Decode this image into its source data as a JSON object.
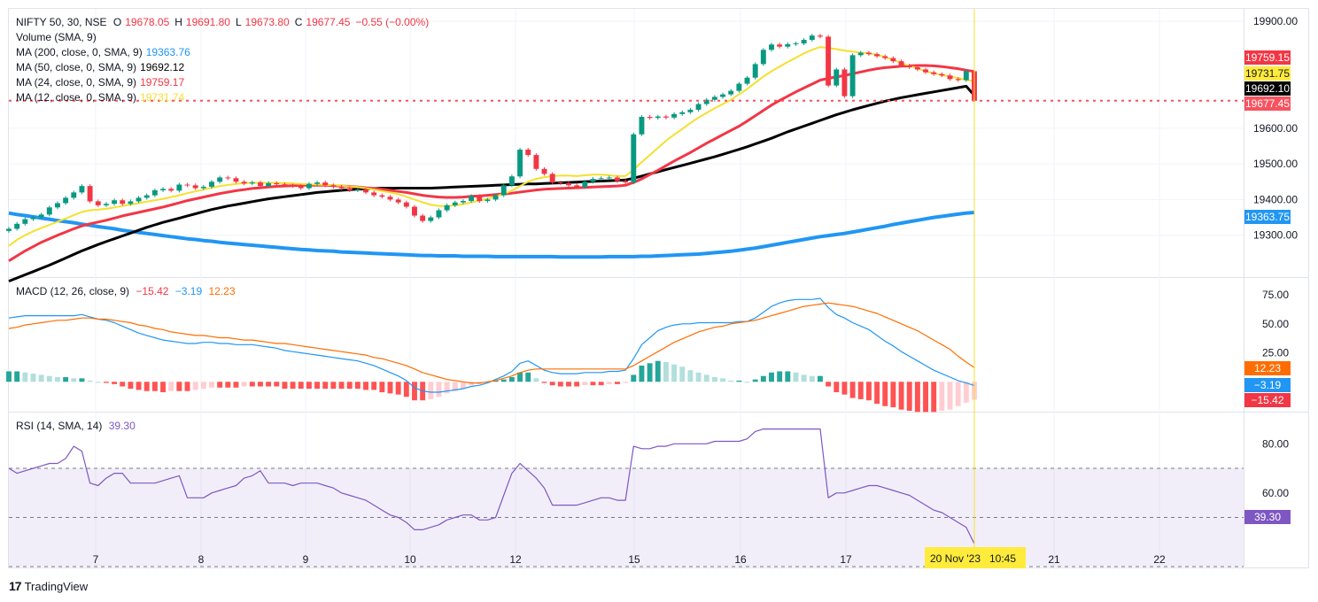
{
  "header": {
    "symbol": "NIFTY 50, 30, NSE",
    "o_label": "O",
    "o": "19678.05",
    "h_label": "H",
    "h": "19691.80",
    "l_label": "L",
    "l": "19673.80",
    "c_label": "C",
    "c": "19677.45",
    "change": "−0.55 (−0.00%)"
  },
  "legend": [
    {
      "label": "Volume (SMA, 9)",
      "value": "",
      "color": "#131722"
    },
    {
      "label": "MA (200, close, 0, SMA, 9)",
      "value": "19363.76",
      "color": "#2196f3"
    },
    {
      "label": "MA (50, close, 0, SMA, 9)",
      "value": "19692.12",
      "color": "#000000"
    },
    {
      "label": "MA (24, close, 0, SMA, 9)",
      "value": "19759.17",
      "color": "#f23645"
    },
    {
      "label": "MA (12, close, 0, SMA, 9)",
      "value": "19731.74",
      "color": "#f5e02e"
    }
  ],
  "macd_legend": {
    "label": "MACD (12, 26, close, 9)",
    "hist": "−15.42",
    "macd": "−3.19",
    "signal": "12.23"
  },
  "rsi_legend": {
    "label": "RSI (14, SMA, 14)",
    "value": "39.30"
  },
  "price_badges": [
    {
      "text": "19759.15",
      "bg": "#f23645",
      "fg": "#ffffff",
      "v": 19759.15
    },
    {
      "text": "19731.75",
      "bg": "#ffeb3b",
      "fg": "#131722",
      "v": 19731.75
    },
    {
      "text": "19692.10",
      "bg": "#000000",
      "fg": "#ffffff",
      "v": 19692.1
    },
    {
      "text": "19677.45",
      "bg": "#f7525f",
      "fg": "#ffffff",
      "v": 19677.45
    },
    {
      "text": "19363.75",
      "bg": "#2196f3",
      "fg": "#ffffff",
      "v": 19363.75
    }
  ],
  "macd_badges": [
    {
      "text": "12.23",
      "bg": "#ff6d00",
      "v": 12.23
    },
    {
      "text": "−3.19",
      "bg": "#2196f3",
      "v": -3.19
    },
    {
      "text": "−15.42",
      "bg": "#f23645",
      "v": -15.42
    }
  ],
  "rsi_badge": {
    "text": "39.30",
    "bg": "#7e57c2",
    "v": 39.3
  },
  "crosshair_label": {
    "date": "20 Nov '23",
    "time": "10:45"
  },
  "branding": {
    "mark": "17",
    "name": "TradingView"
  },
  "colors": {
    "up": "#089981",
    "down": "#f23645",
    "ma200": "#2196f3",
    "ma50": "#000000",
    "ma24": "#f23645",
    "ma12": "#f5e02e",
    "rsi": "#7e57c2",
    "macd": "#2196f3",
    "signal": "#ff6d00"
  },
  "chart_data": [
    {
      "type": "candlestick",
      "title": "NIFTY 50, 30, NSE",
      "x_ticks": [
        "7",
        "8",
        "9",
        "10",
        "12",
        "15",
        "16",
        "17",
        "21",
        "22"
      ],
      "y_ticks": [
        "19900.00",
        "19600.00",
        "19500.00",
        "19400.00",
        "19300.00"
      ],
      "ylim": [
        19185,
        19935
      ],
      "closes": [
        19318,
        19332,
        19345,
        19350,
        19358,
        19378,
        19390,
        19405,
        19420,
        19438,
        19395,
        19384,
        19388,
        19398,
        19388,
        19395,
        19405,
        19412,
        19426,
        19430,
        19425,
        19442,
        19440,
        19432,
        19436,
        19450,
        19462,
        19460,
        19450,
        19445,
        19448,
        19438,
        19446,
        19443,
        19440,
        19438,
        19432,
        19444,
        19448,
        19440,
        19436,
        19432,
        19426,
        19428,
        19420,
        19412,
        19408,
        19400,
        19392,
        19380,
        19355,
        19340,
        19350,
        19370,
        19384,
        19392,
        19396,
        19410,
        19396,
        19400,
        19412,
        19440,
        19465,
        19540,
        19525,
        19486,
        19472,
        19448,
        19446,
        19440,
        19435,
        19450,
        19458,
        19460,
        19462,
        19452,
        19448,
        19583,
        19632,
        19629,
        19633,
        19630,
        19640,
        19645,
        19652,
        19668,
        19680,
        19688,
        19695,
        19705,
        19725,
        19742,
        19780,
        19820,
        19835,
        19829,
        19836,
        19838,
        19848,
        19860,
        19857,
        19720,
        19765,
        19690,
        19805,
        19812,
        19808,
        19802,
        19797,
        19788,
        19776,
        19771,
        19765,
        19757,
        19752,
        19748,
        19738,
        19735,
        19760,
        19677
      ],
      "ma12": [
        19270,
        19287,
        19300,
        19311,
        19320,
        19329,
        19338,
        19347,
        19356,
        19365,
        19370,
        19372,
        19374,
        19378,
        19382,
        19386,
        19390,
        19394,
        19398,
        19402,
        19407,
        19412,
        19418,
        19423,
        19428,
        19433,
        19438,
        19441,
        19444,
        19446,
        19447,
        19447,
        19447,
        19447,
        19446,
        19445,
        19444,
        19443,
        19442,
        19441,
        19440,
        19439,
        19437,
        19435,
        19432,
        19428,
        19424,
        19420,
        19415,
        19408,
        19400,
        19392,
        19386,
        19382,
        19382,
        19384,
        19387,
        19392,
        19397,
        19402,
        19409,
        19416,
        19425,
        19438,
        19450,
        19458,
        19463,
        19466,
        19467,
        19467,
        19466,
        19468,
        19470,
        19470,
        19468,
        19466,
        19466,
        19484,
        19505,
        19525,
        19545,
        19565,
        19582,
        19598,
        19615,
        19630,
        19643,
        19656,
        19668,
        19680,
        19695,
        19710,
        19728,
        19745,
        19760,
        19773,
        19786,
        19798,
        19810,
        19820,
        19828,
        19825,
        19822,
        19818,
        19815,
        19812,
        19810,
        19806,
        19800,
        19792,
        19783,
        19775,
        19768,
        19760,
        19754,
        19750,
        19745,
        19741,
        19736,
        19731.74
      ],
      "ma24": [
        19228,
        19242,
        19256,
        19268,
        19280,
        19290,
        19300,
        19309,
        19318,
        19326,
        19332,
        19337,
        19342,
        19348,
        19354,
        19359,
        19364,
        19369,
        19374,
        19379,
        19385,
        19391,
        19397,
        19402,
        19407,
        19412,
        19417,
        19421,
        19425,
        19428,
        19431,
        19433,
        19435,
        19437,
        19438,
        19439,
        19440,
        19440,
        19440,
        19440,
        19439,
        19438,
        19437,
        19435,
        19433,
        19431,
        19429,
        19426,
        19423,
        19420,
        19416,
        19412,
        19409,
        19407,
        19406,
        19406,
        19407,
        19409,
        19410,
        19412,
        19414,
        19416,
        19418,
        19421,
        19424,
        19427,
        19429,
        19430,
        19431,
        19432,
        19433,
        19434,
        19435,
        19436,
        19437,
        19438,
        19440,
        19448,
        19458,
        19470,
        19482,
        19495,
        19508,
        19520,
        19532,
        19545,
        19558,
        19570,
        19582,
        19594,
        19606,
        19620,
        19635,
        19650,
        19665,
        19678,
        19690,
        19702,
        19713,
        19724,
        19735,
        19740,
        19744,
        19748,
        19753,
        19758,
        19763,
        19767,
        19770,
        19772,
        19774,
        19775,
        19776,
        19776,
        19775,
        19773,
        19770,
        19767,
        19763,
        19759.17
      ],
      "ma50": [
        19171,
        19180,
        19189,
        19198,
        19207,
        19216,
        19226,
        19236,
        19246,
        19256,
        19265,
        19274,
        19282,
        19290,
        19298,
        19306,
        19314,
        19322,
        19329,
        19336,
        19342,
        19348,
        19354,
        19360,
        19366,
        19372,
        19377,
        19382,
        19386,
        19390,
        19394,
        19398,
        19402,
        19405,
        19408,
        19411,
        19414,
        19417,
        19420,
        19422,
        19424,
        19426,
        19428,
        19429,
        19430,
        19431,
        19432,
        19432,
        19432,
        19432,
        19432,
        19432,
        19432,
        19433,
        19434,
        19435,
        19436,
        19437,
        19438,
        19439,
        19440,
        19441,
        19442,
        19443,
        19444,
        19444,
        19445,
        19446,
        19447,
        19448,
        19449,
        19450,
        19451,
        19452,
        19453,
        19454,
        19455,
        19460,
        19466,
        19472,
        19478,
        19484,
        19490,
        19496,
        19502,
        19508,
        19514,
        19520,
        19527,
        19534,
        19541,
        19548,
        19556,
        19564,
        19572,
        19581,
        19590,
        19598,
        19606,
        19614,
        19622,
        19630,
        19638,
        19645,
        19652,
        19658,
        19664,
        19670,
        19676,
        19681,
        19686,
        19690,
        19694,
        19698,
        19702,
        19706,
        19710,
        19714,
        19718,
        19692.12
      ],
      "ma200": [
        19362,
        19358,
        19355,
        19352,
        19348,
        19345,
        19341,
        19338,
        19335,
        19331,
        19328,
        19324,
        19321,
        19318,
        19314,
        19311,
        19308,
        19305,
        19302,
        19299,
        19296,
        19293,
        19290,
        19288,
        19285,
        19283,
        19280,
        19278,
        19276,
        19274,
        19272,
        19270,
        19268,
        19266,
        19264,
        19262,
        19260,
        19259,
        19257,
        19256,
        19255,
        19253,
        19252,
        19251,
        19250,
        19249,
        19248,
        19247,
        19246,
        19245,
        19244,
        19243,
        19243,
        19242,
        19242,
        19242,
        19241,
        19241,
        19241,
        19241,
        19240,
        19240,
        19240,
        19240,
        19240,
        19240,
        19240,
        19240,
        19239,
        19239,
        19239,
        19239,
        19239,
        19239,
        19240,
        19240,
        19240,
        19240,
        19241,
        19241,
        19242,
        19243,
        19244,
        19245,
        19246,
        19247,
        19249,
        19251,
        19253,
        19255,
        19258,
        19261,
        19264,
        19268,
        19272,
        19276,
        19280,
        19284,
        19288,
        19292,
        19296,
        19299,
        19302,
        19305,
        19309,
        19313,
        19317,
        19321,
        19325,
        19330,
        19334,
        19338,
        19342,
        19346,
        19350,
        19353,
        19356,
        19359,
        19362,
        19363.76
      ]
    },
    {
      "type": "line",
      "title": "MACD (12, 26, close, 9)",
      "y_ticks": [
        "75.00",
        "50.00",
        "25.00"
      ],
      "ylim": [
        -25,
        88
      ],
      "macd": [
        55,
        56,
        57,
        57,
        57,
        57,
        57,
        57,
        57,
        58,
        56,
        54,
        53,
        51,
        48,
        45,
        42,
        40,
        38,
        36,
        35,
        34,
        33,
        33,
        34,
        34,
        33,
        33,
        32,
        32,
        32,
        31,
        30,
        29,
        27,
        26,
        25,
        24,
        23,
        22,
        21,
        20,
        19,
        18,
        16,
        14,
        11,
        8,
        5,
        1,
        -5,
        -8,
        -9,
        -9,
        -8,
        -7,
        -6,
        -4,
        -3,
        -1,
        2,
        5,
        9,
        16,
        18,
        14,
        10,
        8,
        7,
        7,
        7,
        8,
        8,
        8,
        9,
        9,
        10,
        20,
        32,
        38,
        44,
        47,
        49,
        50,
        50,
        51,
        51,
        51,
        51,
        51,
        52,
        52,
        55,
        60,
        65,
        68,
        70,
        71,
        71,
        71,
        72,
        64,
        58,
        55,
        51,
        48,
        45,
        40,
        35,
        31,
        26,
        22,
        18,
        14,
        10,
        7,
        4,
        1,
        -1,
        -3.19
      ],
      "signal": [
        46,
        47,
        49,
        50,
        51,
        52,
        53,
        53,
        54,
        55,
        55,
        54,
        54,
        53,
        52,
        51,
        49,
        48,
        46,
        45,
        43,
        42,
        41,
        40,
        40,
        39,
        38,
        38,
        37,
        36,
        36,
        35,
        34,
        33,
        33,
        32,
        31,
        30,
        29,
        28,
        27,
        26,
        25,
        24,
        23,
        21,
        20,
        18,
        16,
        14,
        11,
        8,
        6,
        4,
        2,
        1,
        0,
        -1,
        -1,
        0,
        1,
        3,
        5,
        8,
        10,
        11,
        11,
        11,
        11,
        11,
        11,
        11,
        11,
        11,
        11,
        11,
        11,
        14,
        18,
        22,
        26,
        30,
        34,
        37,
        40,
        43,
        45,
        47,
        48,
        50,
        51,
        52,
        53,
        55,
        57,
        59,
        61,
        63,
        65,
        66,
        67,
        68,
        67,
        66,
        65,
        63,
        61,
        59,
        56,
        53,
        50,
        47,
        44,
        40,
        36,
        32,
        28,
        22,
        17,
        12.23
      ],
      "histogram": [
        9,
        9,
        8,
        7,
        6,
        5,
        4,
        4,
        3,
        3,
        1,
        0,
        -1,
        -2,
        -4,
        -6,
        -7,
        -8,
        -8,
        -9,
        -8,
        -8,
        -8,
        -7,
        -6,
        -5,
        -5,
        -5,
        -5,
        -4,
        -4,
        -4,
        -4,
        -4,
        -6,
        -6,
        -6,
        -6,
        -6,
        -6,
        -6,
        -6,
        -6,
        -6,
        -7,
        -7,
        -9,
        -10,
        -11,
        -13,
        -16,
        -16,
        -15,
        -13,
        -10,
        -8,
        -6,
        -3,
        -2,
        -1,
        1,
        2,
        4,
        8,
        8,
        3,
        -1,
        -3,
        -4,
        -4,
        -4,
        -3,
        -3,
        -3,
        -2,
        -2,
        -1,
        6,
        14,
        16,
        18,
        17,
        15,
        13,
        10,
        8,
        6,
        4,
        3,
        1,
        1,
        0,
        2,
        5,
        8,
        9,
        9,
        8,
        6,
        5,
        5,
        -4,
        -9,
        -11,
        -14,
        -15,
        -16,
        -19,
        -21,
        -22,
        -24,
        -25,
        -26,
        -26,
        -26,
        -25,
        -24,
        -21,
        -18,
        -15.42
      ]
    },
    {
      "type": "line",
      "title": "RSI (14, SMA, 14)",
      "y_ticks": [
        "80.00",
        "60.00"
      ],
      "ylim": [
        30,
        92
      ],
      "bands": [
        30,
        50,
        70
      ],
      "rsi": [
        70,
        68,
        69,
        70,
        71,
        72,
        72,
        74,
        79,
        77,
        64,
        63,
        66,
        68,
        68,
        64,
        64,
        64,
        64,
        65,
        66,
        67,
        58,
        58,
        58,
        60,
        61,
        62,
        63,
        66,
        67,
        69,
        64,
        64,
        64,
        63,
        64,
        64,
        64,
        63,
        62,
        60,
        59,
        58,
        57,
        55,
        53,
        51,
        50,
        48,
        45,
        45,
        46,
        47,
        49,
        50,
        51,
        51,
        49,
        49,
        50,
        59,
        68,
        72,
        69,
        66,
        62,
        55,
        55,
        55,
        55,
        56,
        57,
        58,
        58,
        57,
        57,
        79,
        78,
        78,
        79,
        79,
        80,
        80,
        80,
        80,
        80,
        81,
        81,
        81,
        81,
        82,
        85,
        86,
        86,
        86,
        86,
        86,
        86,
        86,
        86,
        58,
        60,
        60,
        61,
        62,
        63,
        63,
        62,
        61,
        60,
        59,
        57,
        55,
        53,
        52,
        50,
        48,
        46,
        39.3
      ]
    }
  ]
}
